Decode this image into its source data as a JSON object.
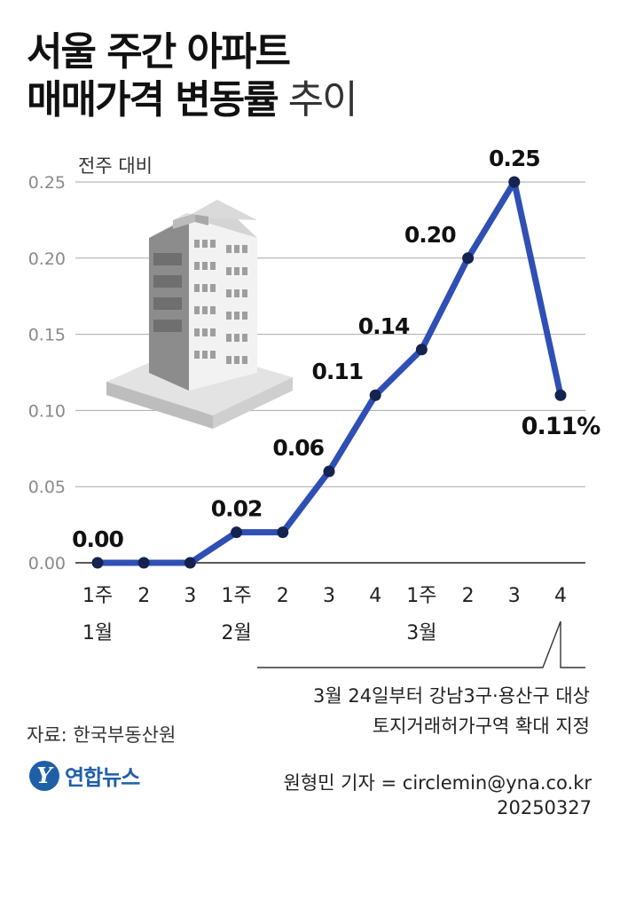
{
  "headline": {
    "line1": "서울 주간 아파트",
    "line2_bold": "매매가격 변동률",
    "line2_light": " 추이"
  },
  "chart_data": {
    "type": "line",
    "unit_label": "전주 대비",
    "ylim": [
      0,
      0.25
    ],
    "y_ticks": [
      "0.00",
      "0.05",
      "0.10",
      "0.15",
      "0.20",
      "0.25"
    ],
    "x_week_labels": [
      "1주",
      "2",
      "3",
      "1주",
      "2",
      "3",
      "4",
      "1주",
      "2",
      "3",
      "4"
    ],
    "month_labels": [
      {
        "label": "1월",
        "index": 0
      },
      {
        "label": "2월",
        "index": 3
      },
      {
        "label": "3월",
        "index": 7
      }
    ],
    "values": [
      0.0,
      0.0,
      0.0,
      0.02,
      0.02,
      0.06,
      0.11,
      0.14,
      0.2,
      0.25,
      0.11
    ],
    "data_labels": [
      {
        "index": 0,
        "text": "0.00"
      },
      {
        "index": 3,
        "text": "0.02"
      },
      {
        "index": 5,
        "text": "0.06"
      },
      {
        "index": 6,
        "text": "0.11"
      },
      {
        "index": 7,
        "text": "0.14"
      },
      {
        "index": 8,
        "text": "0.20"
      },
      {
        "index": 9,
        "text": "0.25"
      },
      {
        "index": 10,
        "text": "0.11%"
      }
    ],
    "line_color": "#2f4fb5",
    "grid": true
  },
  "annotation": {
    "line1": "3월 24일부터 강남3구·용산구 대상",
    "line2": "토지거래허가구역 확대 지정"
  },
  "source": "자료: 한국부동산원",
  "logo": {
    "mark": "Y",
    "text": "연합뉴스"
  },
  "credit": {
    "line1": "원형민 기자 = circlemin@yna.co.kr",
    "line2": "20250327"
  }
}
